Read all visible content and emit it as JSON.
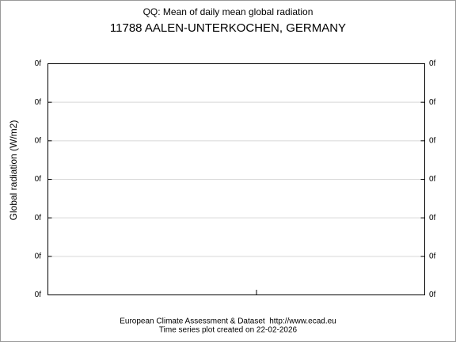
{
  "chart_data": {
    "type": "line",
    "title": "QQ: Mean of daily mean global radiation",
    "subtitle": "11788 AALEN-UNTERKOCHEN, GERMANY",
    "y_label": "Global radiation (W/m2)",
    "series": [],
    "ylim": [
      0,
      6
    ],
    "yticks": [
      {
        "value": 0,
        "label": "0f"
      },
      {
        "value": 1,
        "label": "0f"
      },
      {
        "value": 2,
        "label": "0f"
      },
      {
        "value": 3,
        "label": "0f"
      },
      {
        "value": 4,
        "label": "0f"
      },
      {
        "value": 5,
        "label": "0f"
      },
      {
        "value": 6,
        "label": "0f"
      }
    ],
    "grid": true,
    "footer": [
      "European Climate Assessment & Dataset  http://www.ecad.eu",
      "Time series plot created on 22-02-2026"
    ]
  }
}
